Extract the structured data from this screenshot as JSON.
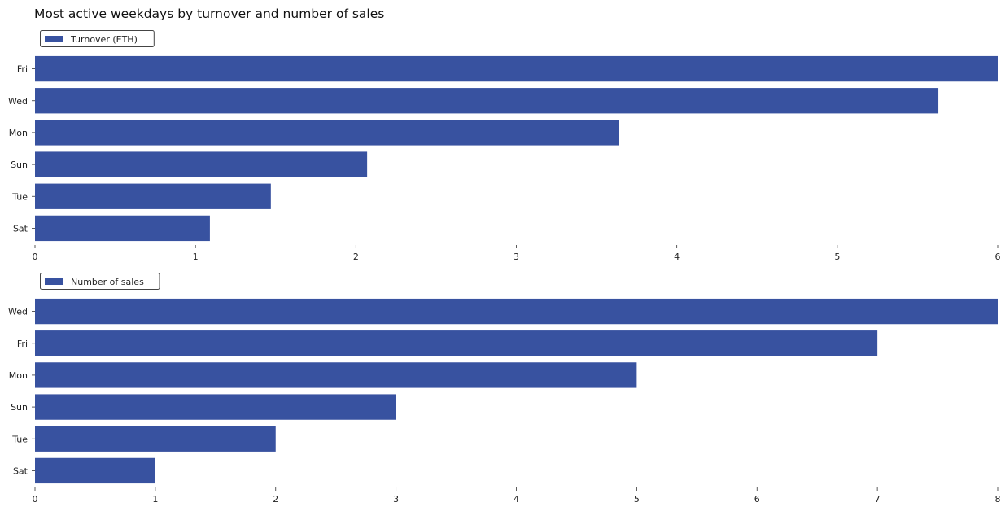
{
  "chart_data": {
    "title": "Most active weekdays by turnover and number of sales",
    "bar_color": "#3852a0",
    "panels": [
      {
        "type": "bar",
        "orientation": "horizontal",
        "categories": [
          "Fri",
          "Wed",
          "Mon",
          "Sun",
          "Tue",
          "Sat"
        ],
        "series": [
          {
            "name": "Turnover (ETH)",
            "values": [
              6.03,
              5.63,
              3.64,
              2.07,
              1.47,
              1.09
            ]
          }
        ],
        "xlim": [
          0,
          6
        ],
        "xticks": [
          0,
          1,
          2,
          3,
          4,
          5,
          6
        ],
        "xlabel": "",
        "ylabel": "",
        "grid": false,
        "legend_position": "top-left"
      },
      {
        "type": "bar",
        "orientation": "horizontal",
        "categories": [
          "Wed",
          "Fri",
          "Mon",
          "Sun",
          "Tue",
          "Sat"
        ],
        "series": [
          {
            "name": "Number of sales",
            "values": [
              8,
              7,
              5,
              3,
              2,
              1
            ]
          }
        ],
        "xlim": [
          0,
          8
        ],
        "xticks": [
          0,
          1,
          2,
          3,
          4,
          5,
          6,
          7,
          8
        ],
        "xlabel": "",
        "ylabel": "",
        "grid": false,
        "legend_position": "top-left"
      }
    ]
  }
}
